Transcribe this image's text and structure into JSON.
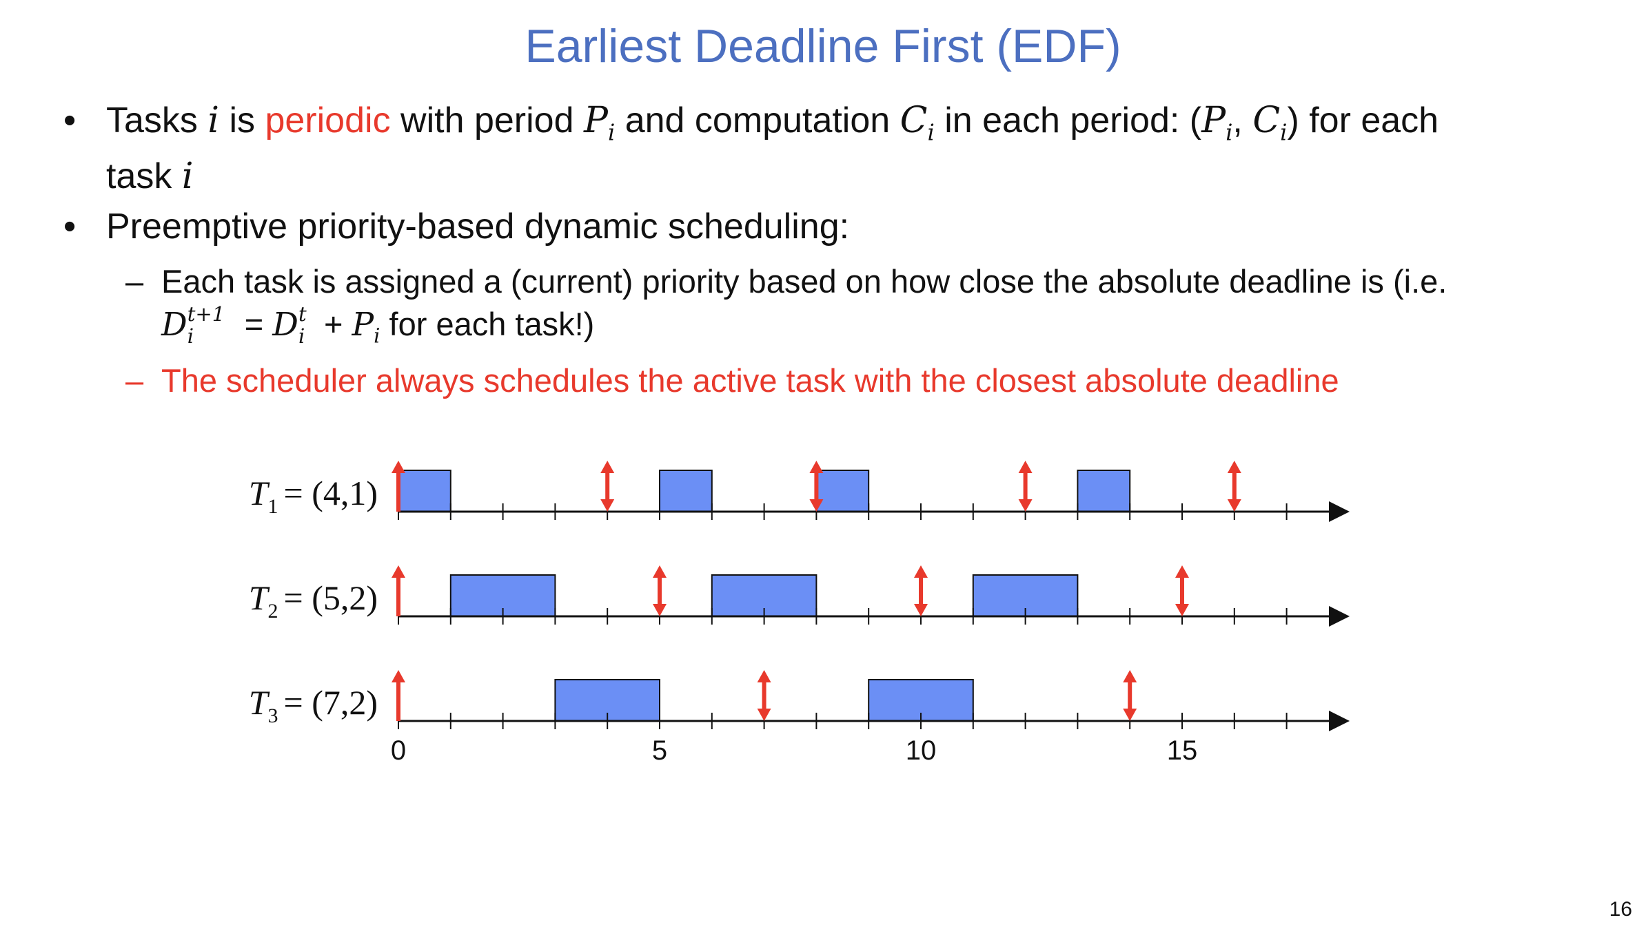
{
  "title": "Earliest Deadline First (EDF)",
  "bullets": {
    "b1": {
      "t1": "Tasks ",
      "i1": "i",
      "t2": " is ",
      "periodic": "periodic",
      "t3": " with period ",
      "P": "P",
      "t4": " and computation ",
      "C": "C",
      "t5": " in each period:  (",
      "t6": ", ",
      "t7": ") for each",
      "t8": "task ",
      "i": "i"
    },
    "b2": {
      "text": "Preemptive priority-based dynamic scheduling:",
      "s1": {
        "dash": "–",
        "line1": "Each task is assigned a (current) priority based on how close the absolute deadline is (i.e.",
        "D": "D",
        "sup_t1": "t+1",
        "sub_i": "i",
        "eq": " = ",
        "sup_t": "t",
        "plus": " + ",
        "P": "P",
        "tail": " for each task!)"
      },
      "s2": {
        "dash": "–",
        "text": "The scheduler always schedules the active task with the closest absolute deadline"
      }
    }
  },
  "chart_data": {
    "type": "timeline",
    "x_range": [
      0,
      18
    ],
    "x_tick_labels": [
      "0",
      "5",
      "10",
      "15"
    ],
    "x_tick_label_values": [
      0,
      5,
      10,
      15
    ],
    "tasks": [
      {
        "label": "T",
        "sub": "1",
        "params": "= (4,1)",
        "executions": [
          [
            0,
            1
          ],
          [
            5,
            6
          ],
          [
            8,
            9
          ],
          [
            13,
            14
          ]
        ],
        "release_only": [
          0
        ],
        "release_deadline": [
          4,
          8,
          12,
          16
        ]
      },
      {
        "label": "T",
        "sub": "2",
        "params": "= (5,2)",
        "executions": [
          [
            1,
            3
          ],
          [
            6,
            8
          ],
          [
            11,
            13
          ]
        ],
        "release_only": [
          0
        ],
        "release_deadline": [
          5,
          10,
          15
        ]
      },
      {
        "label": "T",
        "sub": "3",
        "params": "= (7,2)",
        "executions": [
          [
            3,
            5
          ],
          [
            9,
            11
          ]
        ],
        "release_only": [
          0
        ],
        "release_deadline": [
          7,
          14
        ]
      }
    ],
    "colors": {
      "bar": "#6b8ff5",
      "arrow": "#e8392c",
      "axis": "#111111"
    }
  },
  "page_number": "16"
}
